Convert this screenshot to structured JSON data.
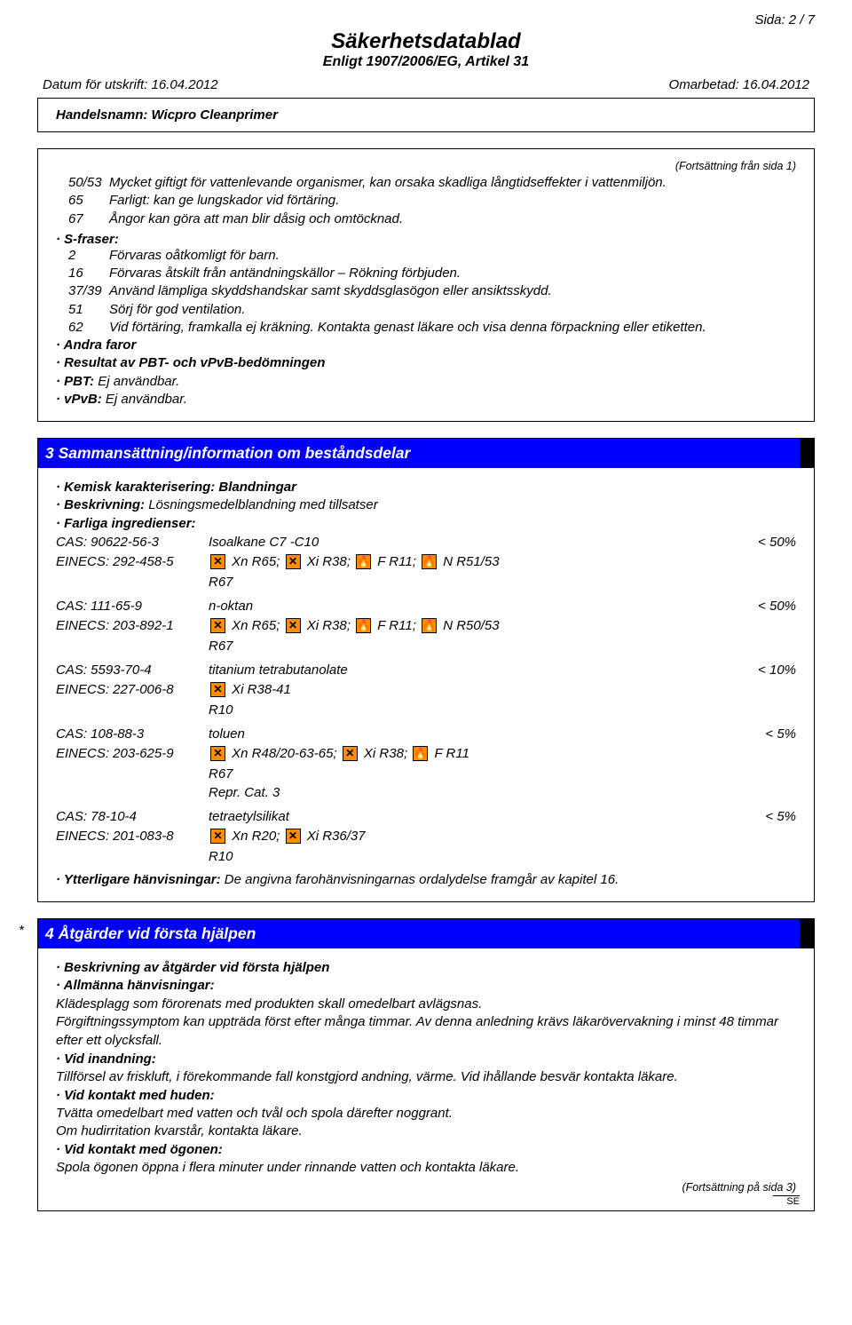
{
  "page_num": "Sida: 2 / 7",
  "header": {
    "title": "Säkerhetsdatablad",
    "subtitle": "Enligt 1907/2006/EG, Artikel 31",
    "date_left": "Datum för utskrift: 16.04.2012",
    "date_right": "Omarbetad: 16.04.2012"
  },
  "handelsnamn": "Handelsnamn: Wicpro Cleanprimer",
  "cont_from": "(Fortsättning från sida 1)",
  "rphrases": [
    {
      "code": "50/53",
      "text": "Mycket giftigt för vattenlevande organismer, kan orsaka skadliga långtidseffekter i vattenmiljön."
    },
    {
      "code": "65",
      "text": "Farligt: kan ge lungskador vid förtäring."
    },
    {
      "code": "67",
      "text": "Ångor kan göra att man blir dåsig och omtöcknad."
    }
  ],
  "sphrase_head": "· S-fraser:",
  "sphrases": [
    {
      "code": "2",
      "text": "Förvaras oåtkomligt för barn."
    },
    {
      "code": "16",
      "text": "Förvaras åtskilt från antändningskällor – Rökning förbjuden."
    },
    {
      "code": "37/39",
      "text": "Använd lämpliga skyddshandskar samt skyddsglasögon eller ansiktsskydd."
    },
    {
      "code": "51",
      "text": "Sörj för god ventilation."
    },
    {
      "code": "62",
      "text": "Vid förtäring, framkalla ej kräkning. Kontakta genast läkare och visa denna förpackning eller etiketten."
    }
  ],
  "andra": {
    "l1": "Andra faror",
    "l2": "Resultat av PBT- och vPvB-bedömningen",
    "l3_lead": "PBT:",
    "l3_rest": " Ej användbar.",
    "l4_lead": "vPvB:",
    "l4_rest": " Ej användbar."
  },
  "section3": {
    "title": "3 Sammansättning/information om beståndsdelar",
    "karak_lead": "Kemisk karakterisering: Blandningar",
    "beskr_lead": "Beskrivning:",
    "beskr_rest": " Lösningsmedelblandning med tillsatser",
    "farliga": "Farliga ingredienser:",
    "ingredients": [
      {
        "cas": "CAS: 90622-56-3",
        "name": "Isoalkane C7 -C10",
        "pct": "< 50%",
        "einecs": "EINECS: 292-458-5",
        "haz": [
          {
            "sym": "x",
            "txt": " Xn R65; "
          },
          {
            "sym": "x",
            "txt": " Xi R38; "
          },
          {
            "sym": "f",
            "txt": " F R11; "
          },
          {
            "sym": "f",
            "txt": " N R51/53"
          }
        ],
        "extra": "R67"
      },
      {
        "cas": "CAS: 111-65-9",
        "name": "n-oktan",
        "pct": "< 50%",
        "einecs": "EINECS: 203-892-1",
        "haz": [
          {
            "sym": "x",
            "txt": " Xn R65; "
          },
          {
            "sym": "x",
            "txt": " Xi R38; "
          },
          {
            "sym": "f",
            "txt": " F R11; "
          },
          {
            "sym": "f",
            "txt": " N R50/53"
          }
        ],
        "extra": "R67"
      },
      {
        "cas": "CAS: 5593-70-4",
        "name": "titanium tetrabutanolate",
        "pct": "< 10%",
        "einecs": "EINECS: 227-006-8",
        "haz": [
          {
            "sym": "x",
            "txt": " Xi R38-41"
          }
        ],
        "extra": "R10"
      },
      {
        "cas": "CAS: 108-88-3",
        "name": "toluen",
        "pct": "< 5%",
        "einecs": "EINECS: 203-625-9",
        "haz": [
          {
            "sym": "x",
            "txt": " Xn R48/20-63-65; "
          },
          {
            "sym": "x",
            "txt": " Xi R38; "
          },
          {
            "sym": "f",
            "txt": " F R11"
          }
        ],
        "extra": "R67",
        "extra2": "Repr. Cat. 3"
      },
      {
        "cas": "CAS: 78-10-4",
        "name": "tetraetylsilikat",
        "pct": "< 5%",
        "einecs": "EINECS: 201-083-8",
        "haz": [
          {
            "sym": "x",
            "txt": " Xn R20; "
          },
          {
            "sym": "x",
            "txt": " Xi R36/37"
          }
        ],
        "extra": "R10"
      }
    ],
    "ytterligare_lead": "Ytterligare hänvisningar:",
    "ytterligare_rest": " De angivna farohänvisningarnas ordalydelse framgår av kapitel 16."
  },
  "section4": {
    "title": "4 Åtgärder vid första hjälpen",
    "star": "*",
    "beskr": "Beskrivning av åtgärder vid första hjälpen",
    "allm_head": "Allmänna hänvisningar:",
    "allm_body": [
      "Klädesplagg som förorenats med produkten skall omedelbart avlägsnas.",
      "Förgiftningssymptom kan uppträda först efter många timmar. Av denna anledning krävs läkarövervakning i minst 48 timmar efter ett olycksfall."
    ],
    "inand_head": "Vid inandning:",
    "inand_body": "Tillförsel av friskluft, i förekommande fall konstgjord andning, värme. Vid ihållande besvär kontakta läkare.",
    "hud_head": "Vid kontakt med huden:",
    "hud_body": [
      "Tvätta omedelbart med vatten och tvål och spola därefter noggrant.",
      "Om hudirritation kvarstår, kontakta läkare."
    ],
    "ogon_head": "Vid kontakt med ögonen:",
    "ogon_body": "Spola ögonen öppna i flera minuter under rinnande vatten och kontakta läkare.",
    "cont_to": "(Fortsättning på sida 3)",
    "se": "SE"
  }
}
